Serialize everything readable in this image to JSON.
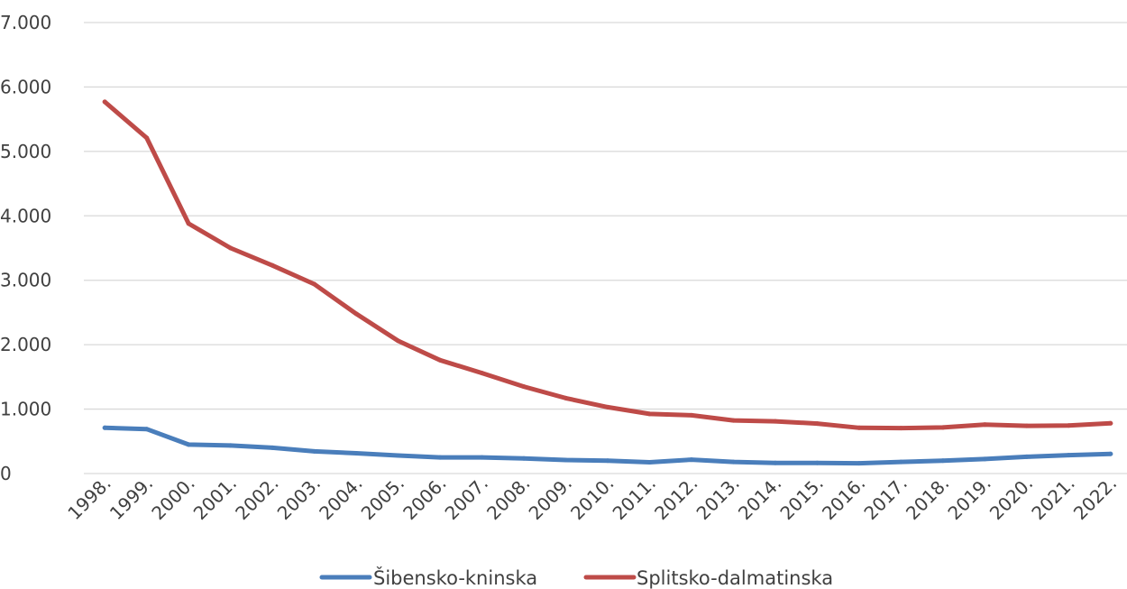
{
  "chart_data": {
    "type": "line",
    "x": [
      "1998.",
      "1999.",
      "2000.",
      "2001.",
      "2002.",
      "2003.",
      "2004.",
      "2005.",
      "2006.",
      "2007.",
      "2008.",
      "2009.",
      "2010.",
      "2011.",
      "2012.",
      "2013.",
      "2014.",
      "2015.",
      "2016.",
      "2017.",
      "2018.",
      "2019.",
      "2020.",
      "2021.",
      "2022."
    ],
    "series": [
      {
        "name": "Šibensko-kninska",
        "color": "#4A7EBB",
        "values": [
          710,
          690,
          450,
          435,
          400,
          345,
          315,
          280,
          250,
          250,
          235,
          210,
          200,
          175,
          215,
          180,
          165,
          165,
          160,
          180,
          200,
          225,
          260,
          285,
          305
        ]
      },
      {
        "name": "Splitsko-dalmatinska",
        "color": "#BE4B48",
        "values": [
          5770,
          5210,
          3880,
          3500,
          3230,
          2940,
          2480,
          2060,
          1760,
          1560,
          1350,
          1170,
          1030,
          925,
          905,
          825,
          810,
          775,
          710,
          705,
          715,
          760,
          740,
          745,
          780
        ]
      }
    ],
    "y_ticks": [
      "0",
      "1.000",
      "2.000",
      "3.000",
      "4.000",
      "5.000",
      "6.000",
      "7.000"
    ],
    "ylim": [
      0,
      7000
    ],
    "grid": true,
    "legend_position": "bottom",
    "gridline_color": "#D9D9D9",
    "text_color": "#404040"
  }
}
